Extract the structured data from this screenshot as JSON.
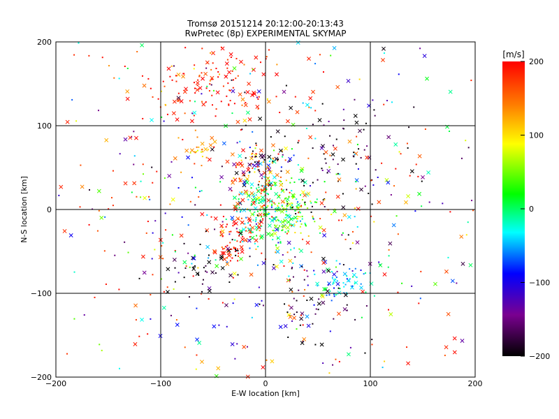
{
  "chart_data": {
    "type": "scatter",
    "title": "Tromsø 20151214 20:12:00-20:13:43",
    "subtitle": "RwPretec (8p) EXPERIMENTAL SKYMAP",
    "xlabel": "E-W location [km]",
    "ylabel": "N-S location [km]",
    "xlim": [
      -200,
      200
    ],
    "ylim": [
      -200,
      200
    ],
    "xticks": [
      -200,
      -100,
      0,
      100,
      200
    ],
    "yticks": [
      -200,
      -100,
      0,
      100,
      200
    ],
    "x_tick_labels": [
      "−200",
      "−100",
      "0",
      "100",
      "200"
    ],
    "y_tick_labels": [
      "−200",
      "−100",
      "0",
      "100",
      "200"
    ],
    "grid": true,
    "colorbar": {
      "title": "[m/s]",
      "min": -200,
      "max": 200,
      "ticks": [
        200,
        100,
        0,
        -100,
        -200
      ],
      "tick_labels": [
        "200",
        "100",
        "0",
        "−100",
        "−200"
      ],
      "colormap": [
        "#000000",
        "#7a0090",
        "#0000ff",
        "#00ffff",
        "#00ff00",
        "#ffff00",
        "#ff8000",
        "#ff0000"
      ]
    },
    "marker_types": [
      "dot",
      "cross"
    ],
    "clusters": [
      {
        "x": -50,
        "y": 150,
        "sx": 35,
        "sy": 25,
        "v": 200,
        "n": 120
      },
      {
        "x": 0,
        "y": 0,
        "sx": 18,
        "sy": 25,
        "v": 0,
        "n": 200
      },
      {
        "x": 20,
        "y": -5,
        "sx": 15,
        "sy": 20,
        "v": 60,
        "n": 90
      },
      {
        "x": -10,
        "y": 40,
        "sx": 15,
        "sy": 20,
        "v": 150,
        "n": 70
      },
      {
        "x": -5,
        "y": 55,
        "sx": 10,
        "sy": 10,
        "v": -200,
        "n": 30
      },
      {
        "x": 75,
        "y": -85,
        "sx": 15,
        "sy": 10,
        "v": -40,
        "n": 60
      },
      {
        "x": -30,
        "y": -50,
        "sx": 8,
        "sy": 6,
        "v": 200,
        "n": 35
      },
      {
        "x": -25,
        "y": -20,
        "sx": 12,
        "sy": 8,
        "v": 200,
        "n": 40
      },
      {
        "x": 50,
        "y": -110,
        "sx": 30,
        "sy": 30,
        "v": -180,
        "n": 60
      },
      {
        "x": -60,
        "y": 75,
        "sx": 8,
        "sy": 8,
        "v": 130,
        "n": 25
      },
      {
        "x": -55,
        "y": -70,
        "sx": 20,
        "sy": 20,
        "v": -200,
        "n": 40
      },
      {
        "x": 60,
        "y": 50,
        "sx": 40,
        "sy": 40,
        "v": -200,
        "n": 80
      },
      {
        "x": 0,
        "y": 0,
        "sx": 120,
        "sy": 110,
        "v": null,
        "n": 650
      }
    ]
  }
}
